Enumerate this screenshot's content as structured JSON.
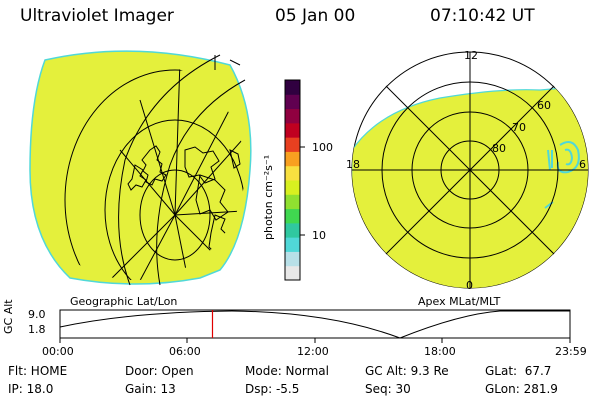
{
  "header": {
    "instrument": "Ultraviolet Imager",
    "date": "05 Jan 00",
    "time": "07:10:42 UT"
  },
  "colorbar": {
    "unit_label": "photon cm⁻²s⁻¹",
    "tick_100": "100",
    "tick_10": "10",
    "colors": [
      "#e8e8e8",
      "#b8e0e8",
      "#50d8d8",
      "#30c8a0",
      "#40d850",
      "#90e030",
      "#d8f020",
      "#f8e040",
      "#f8a020",
      "#e84020",
      "#c00020",
      "#900040",
      "#600050",
      "#300040"
    ]
  },
  "left_map": {
    "label": "Geographic Lat/Lon",
    "fill_color": "#e4f03c"
  },
  "right_map": {
    "label": "Apex MLat/MLT",
    "mlt_12": "12",
    "mlt_18": "18",
    "mlt_6": "6",
    "mlt_0": "0",
    "lat_60": "60",
    "lat_70": "70",
    "lat_80": "80"
  },
  "altitude_plot": {
    "ylabel": "GC Alt",
    "y_max": "9.0",
    "y_min": "1.8",
    "x_ticks": [
      "00:00",
      "06:00",
      "12:00",
      "18:00",
      "23:59"
    ],
    "marker_fraction_of_day": 0.299
  },
  "footer": {
    "flt": "Flt: HOME",
    "ip": "IP: 18.0",
    "door": "Door: Open",
    "gain": "Gain: 13",
    "mode": "Mode: Normal",
    "dsp": "Dsp:   -5.5",
    "gcalt": "GC Alt: 9.3 Re",
    "seq": "Seq: 30",
    "glat": "GLat:  67.7",
    "glon": "GLon: 281.9"
  }
}
